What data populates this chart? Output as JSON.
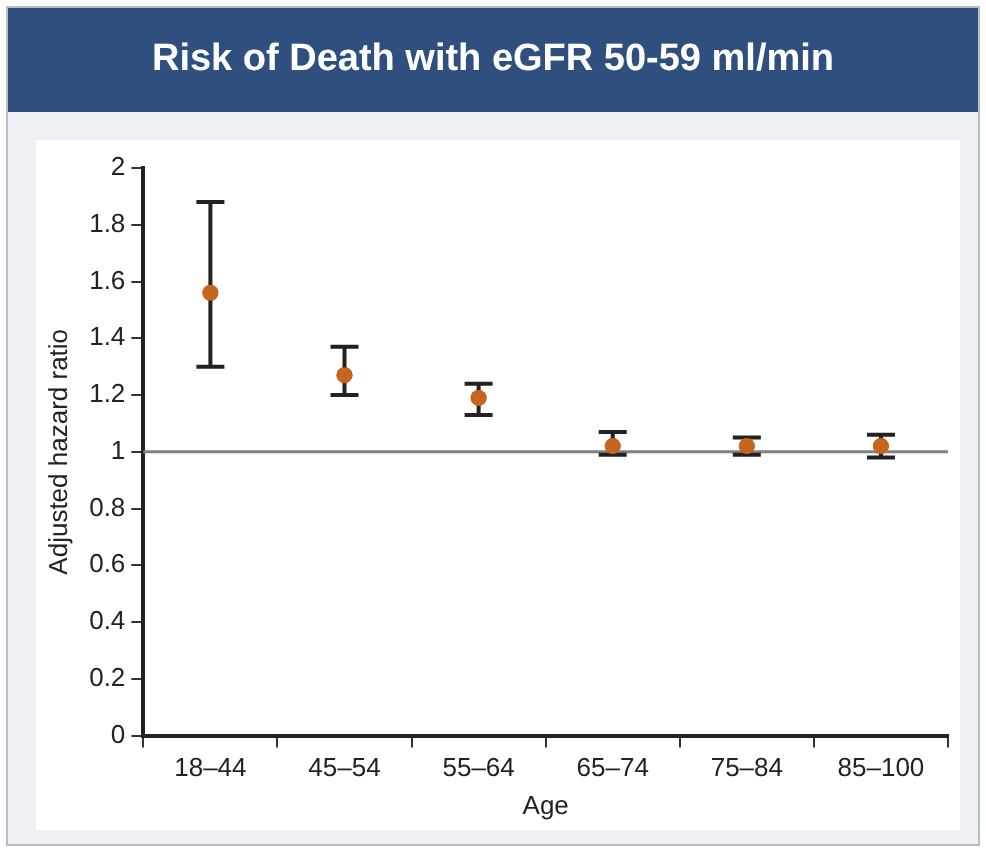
{
  "chart_data": {
    "type": "scatter",
    "title": "Risk of Death with eGFR 50-59 ml/min",
    "xlabel": "Age",
    "ylabel": "Adjusted hazard ratio",
    "categories": [
      "18–44",
      "45–54",
      "55–64",
      "65–74",
      "75–84",
      "85–100"
    ],
    "series": [
      {
        "color": "#c8641e",
        "values": [
          1.56,
          1.27,
          1.19,
          1.02,
          1.02,
          1.02
        ],
        "errors": [
          [
            1.3,
            1.88
          ],
          [
            1.2,
            1.37
          ],
          [
            1.13,
            1.24
          ],
          [
            0.99,
            1.07
          ],
          [
            0.99,
            1.05
          ],
          [
            0.98,
            1.06
          ]
        ]
      }
    ],
    "ylim": [
      0,
      2
    ],
    "yticks": [
      0,
      0.2,
      0.4,
      0.6,
      0.8,
      1,
      1.2,
      1.4,
      1.6,
      1.8,
      2
    ],
    "ref_lines": [
      {
        "axis": "y",
        "value": 1,
        "color": "#808080"
      }
    ],
    "marker": "circle",
    "grid": false,
    "legend": false
  }
}
